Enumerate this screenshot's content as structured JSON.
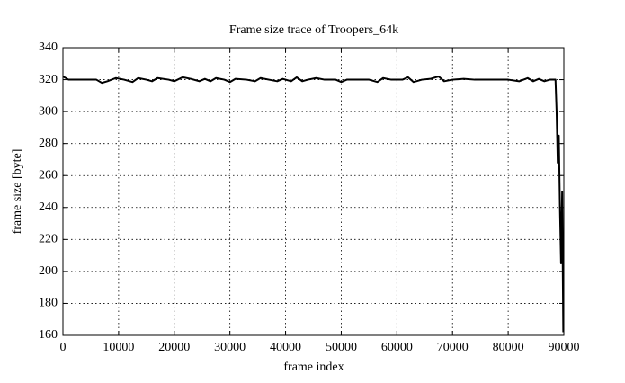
{
  "chart_data": {
    "type": "line",
    "title": "Frame size trace of Troopers_64k",
    "xlabel": "frame index",
    "ylabel": "frame size [byte]",
    "x": [
      0,
      1000,
      3000,
      6000,
      7000,
      8000,
      9500,
      11000,
      12500,
      13500,
      15000,
      16000,
      17000,
      19000,
      20000,
      21500,
      23000,
      24500,
      25500,
      26500,
      27500,
      29000,
      30000,
      31000,
      33000,
      34500,
      35500,
      37000,
      38500,
      39500,
      41000,
      42000,
      43000,
      44000,
      45500,
      47000,
      49000,
      50000,
      51000,
      53000,
      55000,
      56500,
      57500,
      59000,
      61000,
      62000,
      63000,
      64500,
      66000,
      67500,
      68500,
      70000,
      72000,
      74000,
      80000,
      82000,
      83500,
      84500,
      85500,
      86500,
      87500,
      88500,
      88700,
      88900,
      89100,
      89300,
      89500,
      89700,
      89900
    ],
    "values": [
      322,
      320,
      320,
      320,
      318,
      319,
      321,
      320,
      318.5,
      321,
      320,
      319,
      321,
      320,
      319,
      321.5,
      320.5,
      319,
      320.5,
      319,
      321,
      320,
      318.5,
      320.5,
      320,
      319,
      321,
      320,
      319,
      320.5,
      319,
      321.5,
      319,
      320,
      321,
      320,
      320,
      318.5,
      320,
      320,
      320,
      318.5,
      321,
      320,
      320,
      321.5,
      318.5,
      320,
      320.5,
      322,
      319,
      320,
      320.5,
      320,
      320,
      319,
      321,
      319,
      320.5,
      319,
      320,
      320,
      300,
      268,
      285,
      240,
      205,
      250,
      162
    ],
    "color": "#000000",
    "xlim": [
      0,
      90000
    ],
    "xticks": [
      0,
      10000,
      20000,
      30000,
      40000,
      50000,
      60000,
      70000,
      80000,
      90000
    ],
    "ylim": [
      160,
      340
    ],
    "yticks": [
      160,
      180,
      200,
      220,
      240,
      260,
      280,
      300,
      320,
      340
    ],
    "grid": true
  }
}
